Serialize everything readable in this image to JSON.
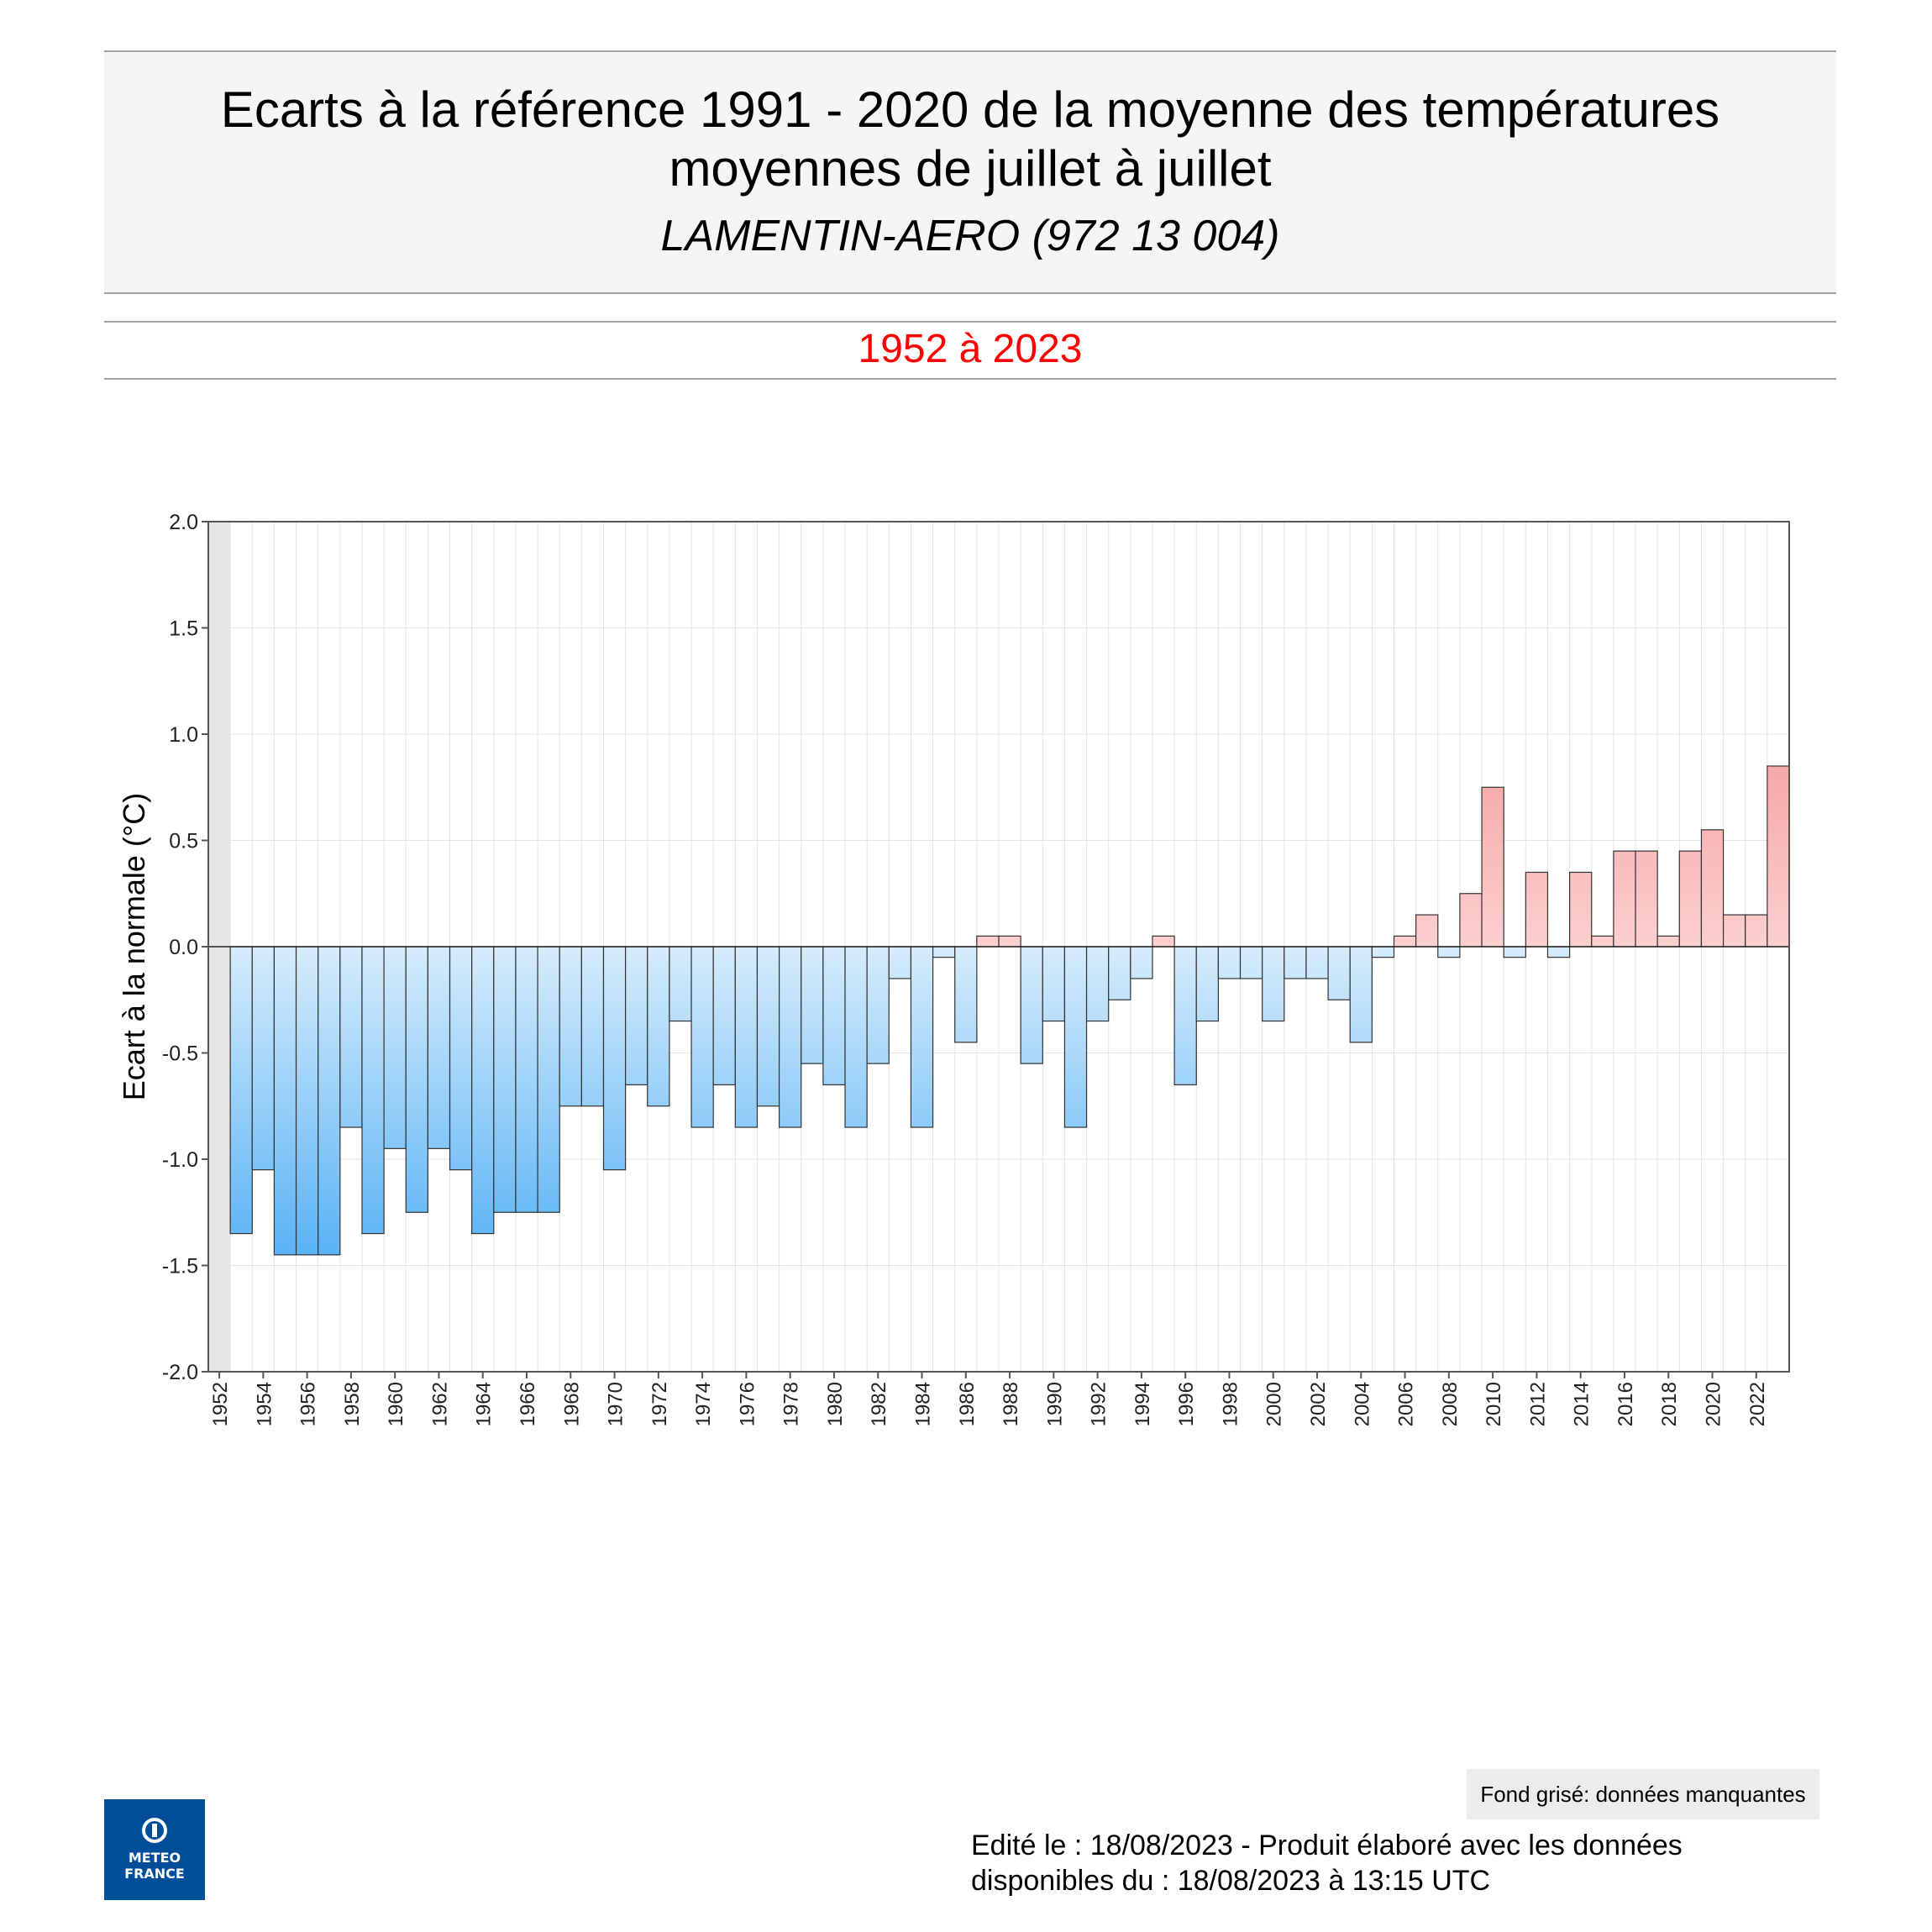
{
  "header": {
    "title_line1": "Ecarts à la référence 1991 - 2020 de la moyenne des températures",
    "title_line2": "moyennes de juillet à juillet",
    "station": "LAMENTIN-AERO (972 13 004)",
    "period": "1952 à 2023"
  },
  "footer": {
    "missing_note": "Fond grisé: données manquantes",
    "edit_line1": "Edité le : 18/08/2023 - Produit élaboré avec les données",
    "edit_line2": "disponibles du : 18/08/2023 à 13:15 UTC",
    "logo_line1": "METEO",
    "logo_line2": "FRANCE"
  },
  "colors": {
    "negative_dark": "#2a9df4",
    "negative_light": "#d6ecfb",
    "positive_dark": "#f07373",
    "positive_light": "#fccfcf",
    "missing_fill": "#e6e6e6",
    "period_text": "#ff0000"
  },
  "chart_data": {
    "type": "bar",
    "ylabel": "Ecart à la normale (°C)",
    "xlabel": "",
    "ylim": [
      -2.0,
      2.0
    ],
    "yticks": [
      "2.0",
      "1.5",
      "1.0",
      "0.5",
      "0.0",
      "-0.5",
      "-1.0",
      "-1.5",
      "-2.0"
    ],
    "x_tick_labels": [
      "1952",
      "1954",
      "1956",
      "1958",
      "1960",
      "1962",
      "1964",
      "1966",
      "1968",
      "1970",
      "1972",
      "1974",
      "1976",
      "1978",
      "1980",
      "1982",
      "1984",
      "1986",
      "1988",
      "1990",
      "1992",
      "1994",
      "1996",
      "1998",
      "2000",
      "2002",
      "2004",
      "2006",
      "2008",
      "2010",
      "2012",
      "2014",
      "2016",
      "2018",
      "2020",
      "2022"
    ],
    "grid": true,
    "missing_years": [
      1952
    ],
    "categories": [
      1952,
      1953,
      1954,
      1955,
      1956,
      1957,
      1958,
      1959,
      1960,
      1961,
      1962,
      1963,
      1964,
      1965,
      1966,
      1967,
      1968,
      1969,
      1970,
      1971,
      1972,
      1973,
      1974,
      1975,
      1976,
      1977,
      1978,
      1979,
      1980,
      1981,
      1982,
      1983,
      1984,
      1985,
      1986,
      1987,
      1988,
      1989,
      1990,
      1991,
      1992,
      1993,
      1994,
      1995,
      1996,
      1997,
      1998,
      1999,
      2000,
      2001,
      2002,
      2003,
      2004,
      2005,
      2006,
      2007,
      2008,
      2009,
      2010,
      2011,
      2012,
      2013,
      2014,
      2015,
      2016,
      2017,
      2018,
      2019,
      2020,
      2021,
      2022,
      2023
    ],
    "values": [
      null,
      -1.35,
      -1.05,
      -1.45,
      -1.45,
      -1.45,
      -0.85,
      -1.35,
      -0.95,
      -1.25,
      -0.95,
      -1.05,
      -1.35,
      -1.25,
      -1.25,
      -1.25,
      -0.75,
      -0.75,
      -1.05,
      -0.65,
      -0.75,
      -0.35,
      -0.85,
      -0.65,
      -0.85,
      -0.75,
      -0.85,
      -0.55,
      -0.65,
      -0.85,
      -0.55,
      -0.15,
      -0.85,
      -0.05,
      -0.45,
      0.05,
      0.05,
      -0.55,
      -0.35,
      -0.85,
      -0.35,
      -0.25,
      -0.15,
      0.05,
      -0.65,
      -0.35,
      -0.15,
      -0.15,
      -0.35,
      -0.15,
      -0.15,
      -0.25,
      -0.45,
      -0.05,
      0.05,
      0.15,
      -0.05,
      0.25,
      0.75,
      -0.05,
      0.35,
      -0.05,
      0.35,
      0.05,
      0.45,
      0.45,
      0.05,
      0.45,
      0.55,
      0.15,
      0.15,
      0.85
    ]
  }
}
